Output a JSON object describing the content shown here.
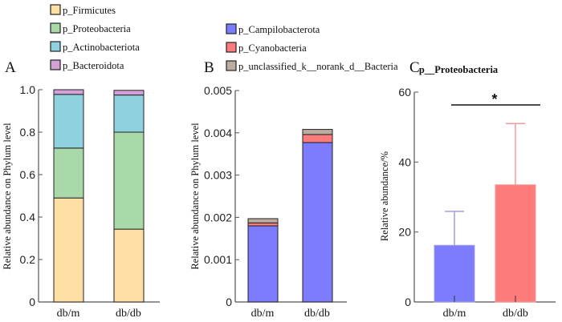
{
  "chart_data": [
    {
      "panel": "A",
      "type": "bar",
      "stacked": true,
      "title": "",
      "categories": [
        "db/m",
        "db/db"
      ],
      "ylabel": "Relative abundance on Phylum level",
      "xlabel": "",
      "ylim": [
        0,
        1.0
      ],
      "yticks": [
        "0",
        "0.2",
        "0.4",
        "0.6",
        "0.8",
        "1.0"
      ],
      "ytick_values": [
        0,
        0.2,
        0.4,
        0.6,
        0.8,
        1.0
      ],
      "legend": "top-left",
      "series": [
        {
          "name": "p_Firmicutes",
          "color": "#FDDFA4",
          "values": [
            0.49,
            0.343
          ]
        },
        {
          "name": "p_Proteobacteria",
          "color": "#A9D8A9",
          "values": [
            0.235,
            0.457
          ]
        },
        {
          "name": "p_Actinobacteriota",
          "color": "#8ED2E0",
          "values": [
            0.253,
            0.175
          ]
        },
        {
          "name": "p_Bacteroidota",
          "color": "#D4A0D8",
          "values": [
            0.022,
            0.022
          ]
        }
      ]
    },
    {
      "panel": "B",
      "type": "bar",
      "stacked": true,
      "title": "",
      "categories": [
        "db/m",
        "db/db"
      ],
      "ylabel": "Relative abundance on Phylum level",
      "xlabel": "",
      "ylim": [
        0,
        0.005
      ],
      "yticks": [
        "0",
        "0.001",
        "0.002",
        "0.003",
        "0.004",
        "0.005"
      ],
      "ytick_values": [
        0,
        0.001,
        0.002,
        0.003,
        0.004,
        0.005
      ],
      "legend": "top",
      "series": [
        {
          "name": "p_Campilobacterota",
          "color": "#7C7CFC",
          "values": [
            0.0018,
            0.00377
          ]
        },
        {
          "name": "p_Cyanobacteria",
          "color": "#FC7C7C",
          "values": [
            7e-05,
            0.00019
          ]
        },
        {
          "name": "p_unclassified_k__norank_d__Bacteria",
          "color": "#BBADA0",
          "values": [
            0.0001,
            0.00012
          ]
        }
      ]
    },
    {
      "panel": "C",
      "type": "bar",
      "stacked": false,
      "title": "p__Proteobacteria",
      "categories": [
        "db/m",
        "db/db"
      ],
      "ylabel": "Relative abundance/%",
      "xlabel": "",
      "ylim": [
        0,
        60
      ],
      "yticks": [
        "0",
        "20",
        "40",
        "60"
      ],
      "ytick_values": [
        0,
        20,
        40,
        60
      ],
      "values": [
        16.2,
        33.5
      ],
      "error_upper": [
        25.9,
        51.0
      ],
      "colors": [
        "#7C7CFC",
        "#FC7C7C"
      ],
      "error_colors": [
        "#A0A0D8",
        "#F29A9A"
      ],
      "significance": {
        "between": [
          "db/m",
          "db/db"
        ],
        "label": "*"
      }
    }
  ],
  "panels": {
    "A_label": "A",
    "B_label": "B",
    "C_label": "C"
  }
}
